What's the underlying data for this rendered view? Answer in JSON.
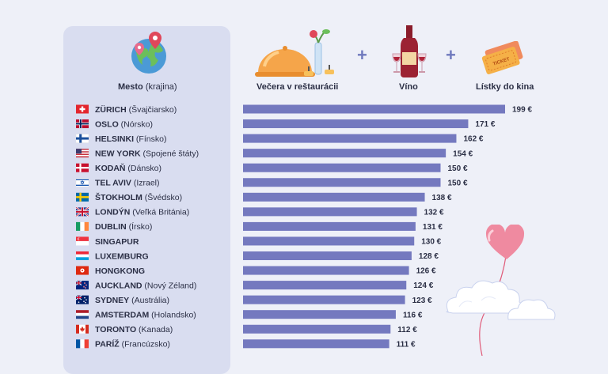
{
  "header": {
    "city_label": "Mesto",
    "country_label": "(krajina)",
    "dinner_label": "Večera v reštaurácii",
    "wine_label": "Víno",
    "tickets_label": "Lístky do kina",
    "plus_sign": "+",
    "ticket_text": "TICKET"
  },
  "colors": {
    "bar": "#7479bf",
    "panel": "#d9ddf0",
    "background": "#eef0f8",
    "plus": "#6f79bd"
  },
  "chart_data": {
    "type": "bar",
    "orientation": "horizontal",
    "unit": "€",
    "categories": [
      "ZÜRICH (Švajčiarsko)",
      "OSLO (Nórsko)",
      "HELSINKI (Fínsko)",
      "NEW YORK (Spojené štáty)",
      "KODAŇ (Dánsko)",
      "TEL AVIV (Izrael)",
      "ŠTOKHOLM (Švédsko)",
      "LONDÝN (Veľká Británia)",
      "DUBLIN (Írsko)",
      "SINGAPUR",
      "LUXEMBURG",
      "HONGKONG",
      "AUCKLAND (Nový Zéland)",
      "SYDNEY (Austrália)",
      "AMSTERDAM (Holandsko)",
      "TORONTO (Kanada)",
      "PARÍŽ (Francúzsko)"
    ],
    "values": [
      199,
      171,
      162,
      154,
      150,
      150,
      138,
      132,
      131,
      130,
      128,
      126,
      124,
      123,
      116,
      112,
      111
    ],
    "rows": [
      {
        "city": "ZÜRICH",
        "country": "(Švajčiarsko)",
        "value": 199,
        "label": "199 €",
        "flag": "switzerland"
      },
      {
        "city": "OSLO",
        "country": "(Nórsko)",
        "value": 171,
        "label": "171 €",
        "flag": "norway"
      },
      {
        "city": "HELSINKI",
        "country": "(Fínsko)",
        "value": 162,
        "label": "162 €",
        "flag": "finland"
      },
      {
        "city": "NEW YORK",
        "country": "(Spojené štáty)",
        "value": 154,
        "label": "154 €",
        "flag": "usa"
      },
      {
        "city": "KODAŇ",
        "country": "(Dánsko)",
        "value": 150,
        "label": "150 €",
        "flag": "denmark"
      },
      {
        "city": "TEL AVIV",
        "country": "(Izrael)",
        "value": 150,
        "label": "150 €",
        "flag": "israel"
      },
      {
        "city": "ŠTOKHOLM",
        "country": "(Švédsko)",
        "value": 138,
        "label": "138 €",
        "flag": "sweden"
      },
      {
        "city": "LONDÝN",
        "country": "(Veľká Británia)",
        "value": 132,
        "label": "132 €",
        "flag": "uk"
      },
      {
        "city": "DUBLIN",
        "country": "(Írsko)",
        "value": 131,
        "label": "131 €",
        "flag": "ireland"
      },
      {
        "city": "SINGAPUR",
        "country": "",
        "value": 130,
        "label": "130 €",
        "flag": "singapore"
      },
      {
        "city": "LUXEMBURG",
        "country": "",
        "value": 128,
        "label": "128 €",
        "flag": "luxembourg"
      },
      {
        "city": "HONGKONG",
        "country": "",
        "value": 126,
        "label": "126 €",
        "flag": "hongkong"
      },
      {
        "city": "AUCKLAND",
        "country": "(Nový Zéland)",
        "value": 124,
        "label": "124 €",
        "flag": "newzealand"
      },
      {
        "city": "SYDNEY",
        "country": "(Austrália)",
        "value": 123,
        "label": "123 €",
        "flag": "australia"
      },
      {
        "city": "AMSTERDAM",
        "country": "(Holandsko)",
        "value": 116,
        "label": "116 €",
        "flag": "netherlands"
      },
      {
        "city": "TORONTO",
        "country": "(Kanada)",
        "value": 112,
        "label": "112 €",
        "flag": "canada"
      },
      {
        "city": "PARÍŽ",
        "country": "(Francúzsko)",
        "value": 111,
        "label": "111 €",
        "flag": "france"
      }
    ],
    "title": "",
    "xlabel": "",
    "ylabel": "",
    "xlim": [
      0,
      199
    ],
    "grid": false,
    "legend": "none"
  }
}
